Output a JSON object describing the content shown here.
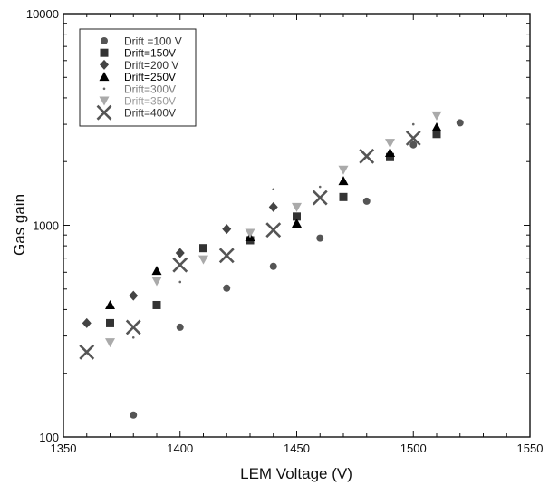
{
  "chart_data": {
    "type": "scatter",
    "title": "",
    "xlabel": "LEM  Voltage (V)",
    "ylabel": "Gas gain",
    "xlim": [
      1350,
      1550
    ],
    "ylim": [
      100,
      10000
    ],
    "yscale": "log",
    "xticks": [
      1350,
      1400,
      1450,
      1500,
      1550
    ],
    "xtick_labels": [
      "1350",
      "1400",
      "1450",
      "1500",
      "1550"
    ],
    "yticks": [
      100,
      1000,
      10000
    ],
    "ytick_labels": [
      "100",
      "1000",
      "10000"
    ],
    "grid": false,
    "legend_position": "top-left",
    "series": [
      {
        "name": "Drift =100 V",
        "marker": "circle",
        "color": "#555555",
        "x": [
          1380,
          1400,
          1420,
          1440,
          1460,
          1480,
          1500,
          1520
        ],
        "y": [
          127,
          330,
          505,
          640,
          870,
          1300,
          2400,
          3050
        ]
      },
      {
        "name": "Drift=150V",
        "marker": "square",
        "color": "#333333",
        "x": [
          1370,
          1390,
          1410,
          1430,
          1450,
          1470,
          1490,
          1510
        ],
        "y": [
          345,
          420,
          780,
          850,
          1100,
          1360,
          2100,
          2700
        ]
      },
      {
        "name": "Drift=200 V",
        "marker": "diamond",
        "color": "#444444",
        "x": [
          1360,
          1380,
          1400,
          1420,
          1440
        ],
        "y": [
          345,
          465,
          740,
          960,
          1220
        ]
      },
      {
        "name": "Drift=250V",
        "marker": "triangle-up",
        "color": "#000000",
        "x": [
          1370,
          1390,
          1430,
          1450,
          1470,
          1490,
          1510
        ],
        "y": [
          420,
          610,
          880,
          1020,
          1620,
          2200,
          2900
        ]
      },
      {
        "name": "Drift=300V",
        "marker": "dot",
        "color": "#666666",
        "x": [
          1380,
          1400,
          1440,
          1460,
          1500
        ],
        "y": [
          295,
          540,
          1480,
          1520,
          3000
        ]
      },
      {
        "name": "Drift=350V",
        "marker": "triangle-down",
        "color": "#aaaaaa",
        "x": [
          1370,
          1390,
          1410,
          1430,
          1450,
          1470,
          1490,
          1510
        ],
        "y": [
          280,
          545,
          690,
          920,
          1220,
          1830,
          2450,
          3300
        ]
      },
      {
        "name": "Drift=400V",
        "marker": "x",
        "color": "#555555",
        "x": [
          1360,
          1380,
          1400,
          1420,
          1440,
          1460,
          1480,
          1500
        ],
        "y": [
          252,
          330,
          650,
          720,
          950,
          1350,
          2120,
          2580
        ]
      }
    ]
  }
}
